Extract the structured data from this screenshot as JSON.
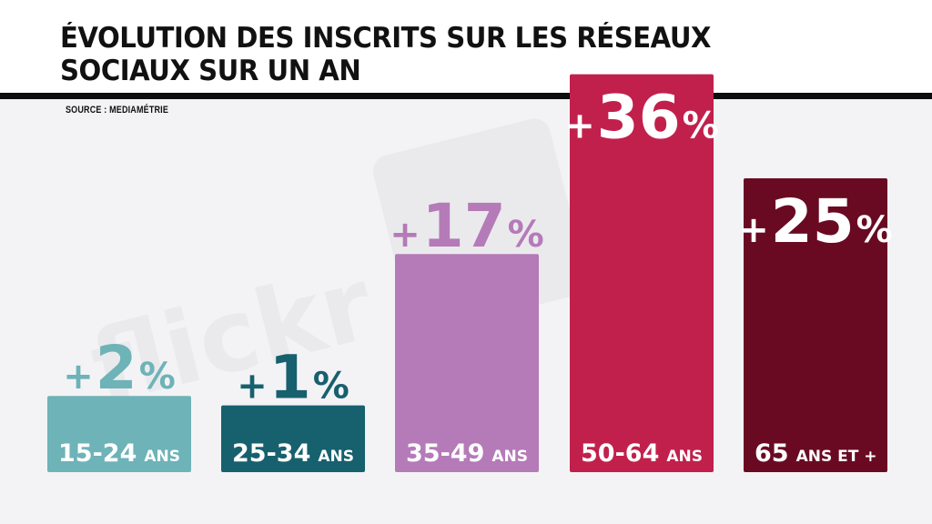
{
  "header": {
    "title_line1": "ÉVOLUTION DES INSCRITS SUR LES RÉSEAUX",
    "title_line2": "SOCIAUX SUR UN AN",
    "source": "SOURCE : MEDIAMÉTRIE"
  },
  "chart_data": {
    "type": "bar",
    "title": "ÉVOLUTION DES INSCRITS SUR LES RÉSEAUX SOCIAUX SUR UN AN",
    "source": "SOURCE : MEDIAMÉTRIE",
    "categories": [
      "15-24 ANS",
      "25-34 ANS",
      "35-49 ANS",
      "50-64 ANS",
      "65 ANS ET +"
    ],
    "category_parts": [
      {
        "num": "15-24",
        "unit": "ANS"
      },
      {
        "num": "25-34",
        "unit": "ANS"
      },
      {
        "num": "35-49",
        "unit": "ANS"
      },
      {
        "num": "50-64",
        "unit": "ANS"
      },
      {
        "num": "65",
        "unit": "ANS ET +"
      }
    ],
    "values": [
      2,
      1,
      17,
      36,
      25
    ],
    "value_labels": [
      {
        "sign": "+",
        "num": "2",
        "pct": "%"
      },
      {
        "sign": "+",
        "num": "1",
        "pct": "%"
      },
      {
        "sign": "+",
        "num": "17",
        "pct": "%"
      },
      {
        "sign": "+",
        "num": "36",
        "pct": "%"
      },
      {
        "sign": "+",
        "num": "25",
        "pct": "%"
      }
    ],
    "colors": [
      "#6db3b8",
      "#17606e",
      "#b57ab8",
      "#c2204c",
      "#6a0a22"
    ],
    "label_colors": [
      "#6db3b8",
      "#17606e",
      "#b57ab8",
      "#ffffff",
      "#ffffff"
    ],
    "label_inside": [
      false,
      false,
      false,
      true,
      true
    ],
    "ylim": [
      0,
      36
    ],
    "grid": false,
    "legend": "none"
  }
}
